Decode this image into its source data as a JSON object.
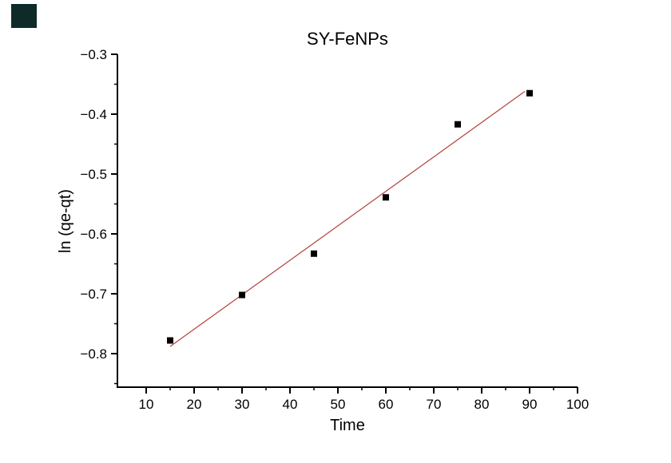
{
  "page": {
    "background": "#ffffff"
  },
  "corner_swatch": {
    "color": "#0e2b29"
  },
  "chart_data": {
    "type": "scatter",
    "title": "SY-FeNPs",
    "xlabel": "Time",
    "ylabel": "ln (qe-qt)",
    "xlim": [
      4,
      100
    ],
    "ylim": [
      -0.856,
      -0.3
    ],
    "grid": false,
    "legend": null,
    "axis_color": "#000000",
    "marker_color": "#000000",
    "marker_shape": "square",
    "x_major_ticks": [
      {
        "value": 10,
        "label": "10"
      },
      {
        "value": 20,
        "label": "20"
      },
      {
        "value": 30,
        "label": "30"
      },
      {
        "value": 40,
        "label": "40"
      },
      {
        "value": 50,
        "label": "50"
      },
      {
        "value": 60,
        "label": "60"
      },
      {
        "value": 70,
        "label": "70"
      },
      {
        "value": 80,
        "label": "80"
      },
      {
        "value": 90,
        "label": "90"
      },
      {
        "value": 100,
        "label": "100"
      }
    ],
    "x_minor_ticks": [
      15,
      25,
      35,
      45,
      55,
      65,
      75,
      85,
      95
    ],
    "y_major_ticks": [
      {
        "value": -0.3,
        "label": "−0.3"
      },
      {
        "value": -0.4,
        "label": "−0.4"
      },
      {
        "value": -0.5,
        "label": "−0.5"
      },
      {
        "value": -0.6,
        "label": "−0.6"
      },
      {
        "value": -0.7,
        "label": "−0.7"
      },
      {
        "value": -0.8,
        "label": "−0.8"
      }
    ],
    "y_minor_ticks": [
      -0.35,
      -0.45,
      -0.55,
      -0.65,
      -0.75,
      -0.85
    ],
    "points": [
      {
        "x": 15,
        "y": -0.778
      },
      {
        "x": 30,
        "y": -0.702
      },
      {
        "x": 45,
        "y": -0.633
      },
      {
        "x": 60,
        "y": -0.539
      },
      {
        "x": 75,
        "y": -0.417
      },
      {
        "x": 90,
        "y": -0.365
      }
    ],
    "fit_line": {
      "x1": 15,
      "y1": -0.788,
      "x2": 89,
      "y2": -0.362,
      "color": "#b2423e"
    }
  }
}
